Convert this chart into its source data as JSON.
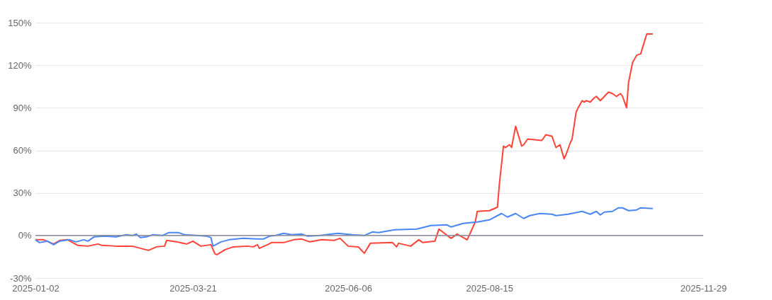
{
  "chart_data": {
    "type": "line",
    "grid": "y",
    "marker": "none",
    "line_style": "solid",
    "xlim": [
      "2025-01-02",
      "2025-11-29"
    ],
    "xticks": [
      "2025-01-02",
      "2025-03-21",
      "2025-06-06",
      "2025-08-15",
      "2025-11-29"
    ],
    "ylim": [
      -30,
      150
    ],
    "yticks": [
      {
        "value": -30,
        "label": "-30%"
      },
      {
        "value": 0,
        "label": "0%"
      },
      {
        "value": 30,
        "label": "30%"
      },
      {
        "value": 60,
        "label": "60%"
      },
      {
        "value": 90,
        "label": "90%"
      },
      {
        "value": 120,
        "label": "120%"
      },
      {
        "value": 150,
        "label": "150%"
      }
    ],
    "ref_lines": [
      {
        "axis": "y",
        "value": 0,
        "label": null,
        "color": "#8c8c9a"
      }
    ],
    "series": [
      {
        "color": "#ff4338",
        "x": [
          "2025-01-02",
          "2025-01-06",
          "2025-01-11",
          "2025-01-14",
          "2025-01-18",
          "2025-01-23",
          "2025-01-28",
          "2025-02-02",
          "2025-02-04",
          "2025-02-11",
          "2025-02-19",
          "2025-02-23",
          "2025-02-27",
          "2025-03-03",
          "2025-03-07",
          "2025-03-08",
          "2025-03-13",
          "2025-03-18",
          "2025-03-21",
          "2025-03-25",
          "2025-03-30",
          "2025-04-01",
          "2025-04-02",
          "2025-04-06",
          "2025-04-10",
          "2025-04-17",
          "2025-04-20",
          "2025-04-22",
          "2025-04-23",
          "2025-04-27",
          "2025-04-29",
          "2025-05-05",
          "2025-05-10",
          "2025-05-14",
          "2025-05-18",
          "2025-05-24",
          "2025-05-30",
          "2025-06-02",
          "2025-06-06",
          "2025-06-11",
          "2025-06-14",
          "2025-06-17",
          "2025-06-28",
          "2025-06-30",
          "2025-07-01",
          "2025-07-07",
          "2025-07-11",
          "2025-07-13",
          "2025-07-19",
          "2025-07-21",
          "2025-07-27",
          "2025-07-30",
          "2025-08-04",
          "2025-08-08",
          "2025-08-09",
          "2025-08-15",
          "2025-08-19",
          "2025-08-20",
          "2025-08-22",
          "2025-08-23",
          "2025-08-25",
          "2025-08-26",
          "2025-08-28",
          "2025-08-31",
          "2025-09-01",
          "2025-09-03",
          "2025-09-10",
          "2025-09-12",
          "2025-09-15",
          "2025-09-17",
          "2025-09-19",
          "2025-09-21",
          "2025-09-22",
          "2025-09-24",
          "2025-09-25",
          "2025-09-27",
          "2025-09-28",
          "2025-09-30",
          "2025-10-01",
          "2025-10-02",
          "2025-10-04",
          "2025-10-06",
          "2025-10-07",
          "2025-10-09",
          "2025-10-13",
          "2025-10-15",
          "2025-10-17",
          "2025-10-19",
          "2025-10-20",
          "2025-10-22",
          "2025-10-23",
          "2025-10-25",
          "2025-10-27",
          "2025-10-29",
          "2025-11-01",
          "2025-11-04"
        ],
        "values": [
          -3,
          -3,
          -6,
          -3.5,
          -3,
          -7,
          -7.5,
          -6,
          -7,
          -7.5,
          -7.5,
          -9,
          -10.5,
          -8,
          -7.5,
          -3.5,
          -4.5,
          -6,
          -4,
          -7.5,
          -6.5,
          -13,
          -13.5,
          -10,
          -8,
          -7.5,
          -8,
          -6.5,
          -9,
          -6.5,
          -5,
          -5,
          -3,
          -2.5,
          -4.5,
          -3,
          -3.5,
          -2,
          -7.5,
          -8,
          -12.5,
          -5.5,
          -5,
          -8,
          -5.5,
          -7.5,
          -3,
          -5,
          -4,
          4.5,
          -2,
          1,
          -3,
          9.5,
          17,
          17.5,
          20,
          37,
          63,
          62,
          64,
          62,
          77,
          63,
          64,
          68,
          67,
          71,
          70,
          62,
          64,
          54,
          57,
          65,
          68,
          87,
          90,
          95,
          94,
          95,
          94,
          97,
          98,
          95,
          101,
          100,
          98,
          100,
          98,
          90,
          108,
          122,
          127,
          128,
          142,
          142
        ]
      },
      {
        "color": "#4b86f5",
        "x": [
          "2025-01-02",
          "2025-01-04",
          "2025-01-08",
          "2025-01-11",
          "2025-01-14",
          "2025-01-19",
          "2025-01-22",
          "2025-01-26",
          "2025-01-28",
          "2025-01-31",
          "2025-02-05",
          "2025-02-11",
          "2025-02-16",
          "2025-02-19",
          "2025-02-21",
          "2025-02-23",
          "2025-02-26",
          "2025-03-01",
          "2025-03-06",
          "2025-03-09",
          "2025-03-14",
          "2025-03-17",
          "2025-03-23",
          "2025-03-28",
          "2025-03-30",
          "2025-03-31",
          "2025-04-04",
          "2025-04-08",
          "2025-04-15",
          "2025-04-22",
          "2025-04-25",
          "2025-04-28",
          "2025-05-01",
          "2025-05-05",
          "2025-05-09",
          "2025-05-14",
          "2025-05-17",
          "2025-05-23",
          "2025-06-01",
          "2025-06-08",
          "2025-06-14",
          "2025-06-18",
          "2025-06-21",
          "2025-06-29",
          "2025-07-10",
          "2025-07-17",
          "2025-07-25",
          "2025-07-27",
          "2025-08-02",
          "2025-08-09",
          "2025-08-15",
          "2025-08-21",
          "2025-08-24",
          "2025-08-28",
          "2025-09-01",
          "2025-09-04",
          "2025-09-09",
          "2025-09-15",
          "2025-09-17",
          "2025-09-23",
          "2025-09-30",
          "2025-10-04",
          "2025-10-07",
          "2025-10-09",
          "2025-10-11",
          "2025-10-15",
          "2025-10-18",
          "2025-10-20",
          "2025-10-23",
          "2025-10-27",
          "2025-10-29",
          "2025-11-04"
        ],
        "values": [
          -3,
          -5,
          -4,
          -6.5,
          -4,
          -3,
          -4.5,
          -3,
          -4,
          -1,
          -0.5,
          -1,
          0.5,
          0,
          1,
          -1.5,
          -1,
          0.5,
          0,
          2,
          2,
          0.5,
          0,
          -0.5,
          -1.5,
          -7.5,
          -4.5,
          -3,
          -2,
          -2.5,
          -2.5,
          -0.5,
          0,
          1.5,
          0.5,
          1,
          -0.5,
          0,
          1.5,
          0.5,
          0,
          2.5,
          2,
          4,
          4.5,
          7,
          7.5,
          6,
          8.5,
          9.5,
          11,
          15.5,
          13,
          15.5,
          12,
          14,
          15.5,
          15,
          14,
          15,
          17,
          15,
          17,
          14.5,
          16.5,
          17,
          19.5,
          19.5,
          17.5,
          18,
          19.5,
          19
        ]
      }
    ]
  }
}
